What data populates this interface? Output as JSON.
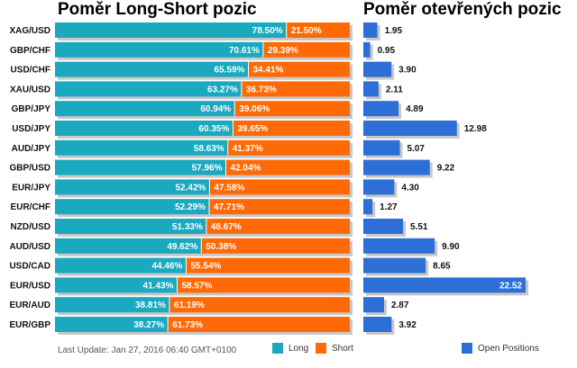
{
  "colors": {
    "long": "#1aa9bf",
    "short": "#ff6a06",
    "open": "#2d6fd6",
    "shadow": "#c8c8c8"
  },
  "chart_data": [
    {
      "type": "bar",
      "title": "Poměr Long-Short pozic",
      "orientation": "horizontal",
      "stacked": true,
      "categories": [
        "XAG/USD",
        "GBP/CHF",
        "USD/CHF",
        "XAU/USD",
        "GBP/JPY",
        "USD/JPY",
        "AUD/JPY",
        "GBP/USD",
        "EUR/JPY",
        "EUR/CHF",
        "NZD/USD",
        "AUD/USD",
        "USD/CAD",
        "EUR/USD",
        "EUR/AUD",
        "EUR/GBP"
      ],
      "series": [
        {
          "name": "Long",
          "values": [
            78.5,
            70.61,
            65.59,
            63.27,
            60.94,
            60.35,
            58.63,
            57.96,
            52.42,
            52.29,
            51.33,
            49.62,
            44.46,
            41.43,
            38.81,
            38.27
          ],
          "labels": [
            "78.50%",
            "70.61%",
            "65.59%",
            "63.27%",
            "60.94%",
            "60.35%",
            "58.63%",
            "57.96%",
            "52.42%",
            "52.29%",
            "51.33%",
            "49.62%",
            "44.46%",
            "41.43%",
            "38.81%",
            "38.27%"
          ]
        },
        {
          "name": "Short",
          "values": [
            21.5,
            29.39,
            34.41,
            36.73,
            39.06,
            39.65,
            41.37,
            42.04,
            47.58,
            47.71,
            48.67,
            50.38,
            55.54,
            58.57,
            61.19,
            61.73
          ],
          "labels": [
            "21.50%",
            "29.39%",
            "34.41%",
            "36.73%",
            "39.06%",
            "39.65%",
            "41.37%",
            "42.04%",
            "47.58%",
            "47.71%",
            "48.67%",
            "50.38%",
            "55.54%",
            "58.57%",
            "61.19%",
            "61.73%"
          ]
        }
      ],
      "xlim": [
        0,
        100
      ],
      "legend": "bottom"
    },
    {
      "type": "bar",
      "title": "Poměr otevřených pozic",
      "orientation": "horizontal",
      "categories": [
        "XAG/USD",
        "GBP/CHF",
        "USD/CHF",
        "XAU/USD",
        "GBP/JPY",
        "USD/JPY",
        "AUD/JPY",
        "GBP/USD",
        "EUR/JPY",
        "EUR/CHF",
        "NZD/USD",
        "AUD/USD",
        "USD/CAD",
        "EUR/USD",
        "EUR/AUD",
        "EUR/GBP"
      ],
      "series": [
        {
          "name": "Open Positions",
          "values": [
            1.95,
            0.95,
            3.9,
            2.11,
            4.89,
            12.98,
            5.07,
            9.22,
            4.3,
            1.27,
            5.51,
            9.9,
            8.65,
            22.52,
            2.87,
            3.92
          ],
          "labels": [
            "1.95",
            "0.95",
            "3.90",
            "2.11",
            "4.89",
            "12.98",
            "5.07",
            "9.22",
            "4.30",
            "1.27",
            "5.51",
            "9.90",
            "8.65",
            "22.52",
            "2.87",
            "3.92"
          ]
        }
      ],
      "xlim": [
        0,
        22.52
      ],
      "legend": "bottom"
    }
  ],
  "footer": {
    "last_update": "Last Update: Jan 27, 2016 06:40 GMT+0100"
  }
}
